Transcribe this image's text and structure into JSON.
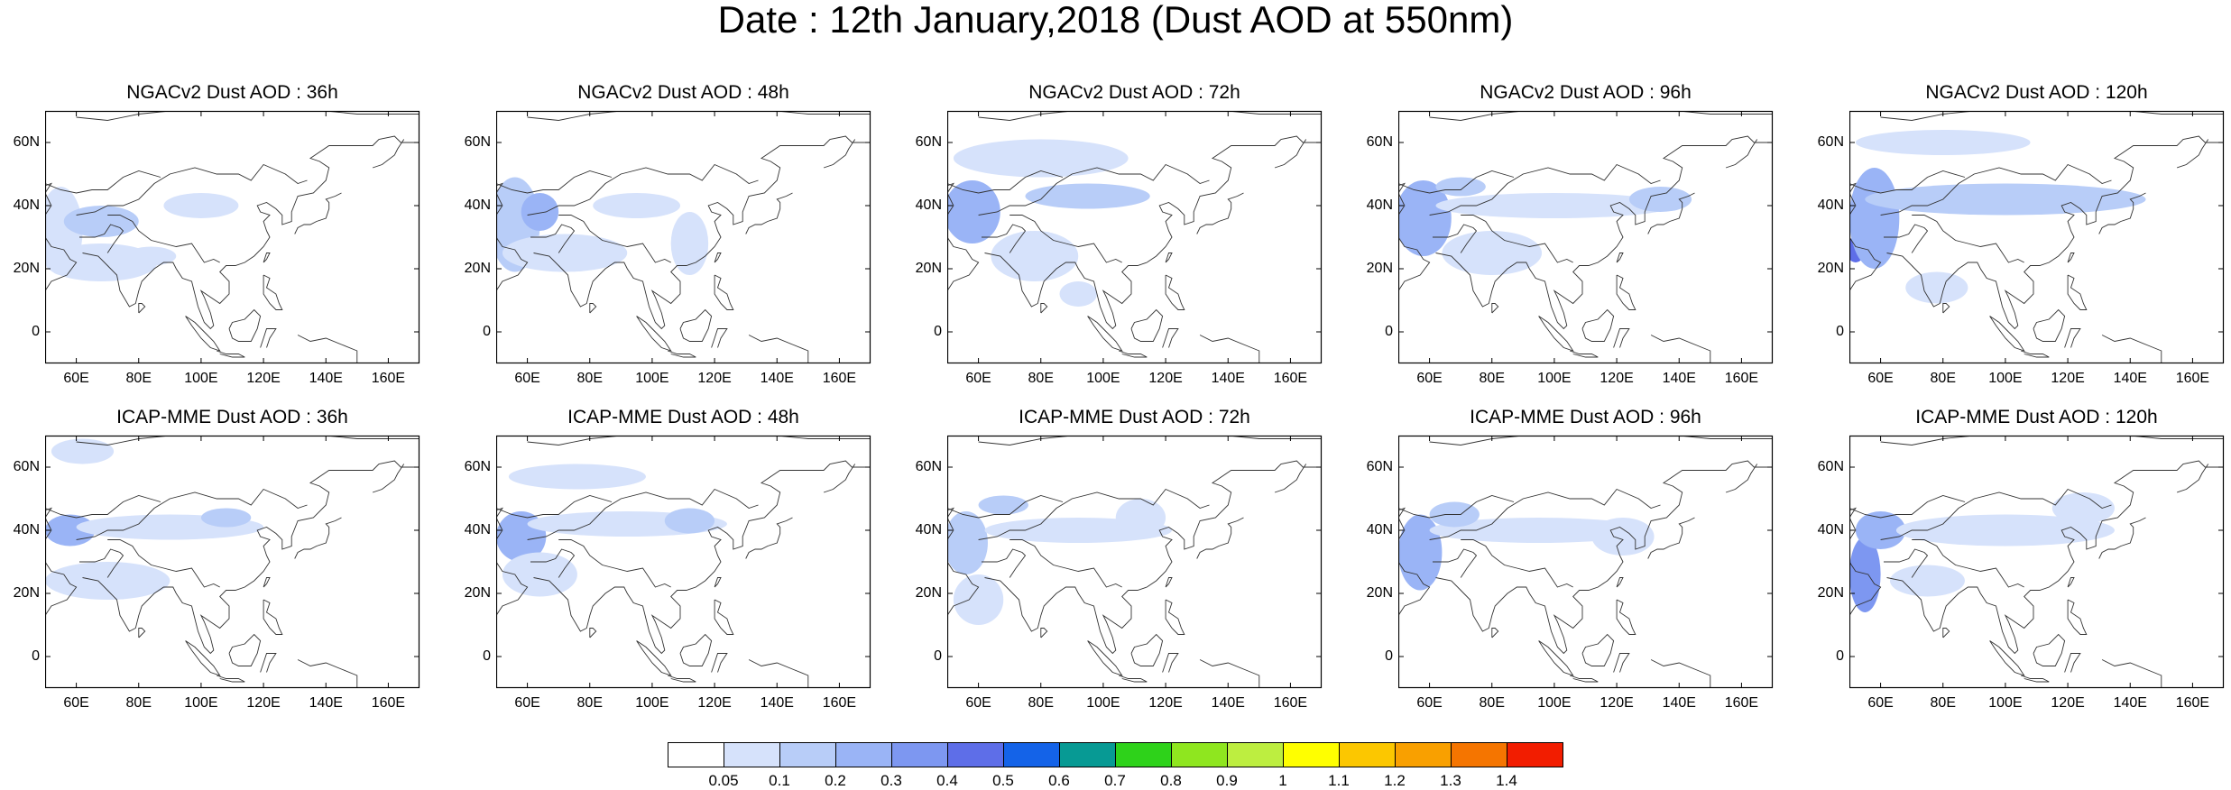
{
  "title": "Date : 12th January,2018 (Dust AOD at 550nm)",
  "chart_data": {
    "type": "heatmap",
    "title": "Date : 12th January,2018 (Dust AOD at 550nm)",
    "map_domain": {
      "lon": [
        50,
        170
      ],
      "lat": [
        -10,
        70
      ]
    },
    "x_ticks": [
      "60E",
      "80E",
      "100E",
      "120E",
      "140E",
      "160E"
    ],
    "x_tick_values": [
      60,
      80,
      100,
      120,
      140,
      160
    ],
    "y_ticks": [
      "60N",
      "40N",
      "20N",
      "0"
    ],
    "y_tick_values": [
      60,
      40,
      20,
      0
    ],
    "colorbar": {
      "levels": [
        "0.05",
        "0.1",
        "0.2",
        "0.3",
        "0.4",
        "0.5",
        "0.6",
        "0.7",
        "0.8",
        "0.9",
        "1",
        "1.1",
        "1.2",
        "1.3",
        "1.4"
      ],
      "colors": [
        "#ffffff",
        "#d6e2fb",
        "#b8cdf8",
        "#9ab4f6",
        "#7d97f1",
        "#5e6ee8",
        "#1463e8",
        "#079a94",
        "#2ed21a",
        "#8fe61f",
        "#bdee40",
        "#ffff00",
        "#fcc700",
        "#f9a000",
        "#f57500",
        "#f21d00"
      ]
    },
    "panels": [
      {
        "model": "NGACv2",
        "lead": "36h",
        "title": "NGACv2 Dust AOD : 36h",
        "plumes": [
          {
            "lon": 55,
            "lat": 32,
            "rx": 7,
            "ry": 14,
            "level": 1
          },
          {
            "lon": 68,
            "lat": 35,
            "rx": 12,
            "ry": 5,
            "level": 2
          },
          {
            "lon": 68,
            "lat": 22,
            "rx": 18,
            "ry": 6,
            "level": 1
          },
          {
            "lon": 100,
            "lat": 40,
            "rx": 12,
            "ry": 4,
            "level": 1
          },
          {
            "lon": 84,
            "lat": 24,
            "rx": 8,
            "ry": 3,
            "level": 1
          }
        ]
      },
      {
        "model": "NGACv2",
        "lead": "48h",
        "title": "NGACv2 Dust AOD : 48h",
        "plumes": [
          {
            "lon": 56,
            "lat": 34,
            "rx": 8,
            "ry": 15,
            "level": 2
          },
          {
            "lon": 72,
            "lat": 25,
            "rx": 20,
            "ry": 6,
            "level": 1
          },
          {
            "lon": 95,
            "lat": 40,
            "rx": 14,
            "ry": 4,
            "level": 1
          },
          {
            "lon": 112,
            "lat": 28,
            "rx": 6,
            "ry": 10,
            "level": 1
          },
          {
            "lon": 64,
            "lat": 38,
            "rx": 6,
            "ry": 6,
            "level": 3
          }
        ]
      },
      {
        "model": "NGACv2",
        "lead": "72h",
        "title": "NGACv2 Dust AOD : 72h",
        "plumes": [
          {
            "lon": 58,
            "lat": 38,
            "rx": 9,
            "ry": 10,
            "level": 3
          },
          {
            "lon": 80,
            "lat": 55,
            "rx": 28,
            "ry": 6,
            "level": 1
          },
          {
            "lon": 95,
            "lat": 43,
            "rx": 20,
            "ry": 4,
            "level": 2
          },
          {
            "lon": 78,
            "lat": 24,
            "rx": 14,
            "ry": 8,
            "level": 1
          },
          {
            "lon": 92,
            "lat": 12,
            "rx": 6,
            "ry": 4,
            "level": 1
          }
        ]
      },
      {
        "model": "NGACv2",
        "lead": "96h",
        "title": "NGACv2 Dust AOD : 96h",
        "plumes": [
          {
            "lon": 58,
            "lat": 36,
            "rx": 9,
            "ry": 12,
            "level": 3
          },
          {
            "lon": 100,
            "lat": 40,
            "rx": 38,
            "ry": 4,
            "level": 1
          },
          {
            "lon": 80,
            "lat": 25,
            "rx": 16,
            "ry": 7,
            "level": 1
          },
          {
            "lon": 134,
            "lat": 42,
            "rx": 10,
            "ry": 4,
            "level": 2
          },
          {
            "lon": 70,
            "lat": 46,
            "rx": 8,
            "ry": 3,
            "level": 2
          }
        ]
      },
      {
        "model": "NGACv2",
        "lead": "120h",
        "title": "NGACv2 Dust AOD : 120h",
        "plumes": [
          {
            "lon": 52,
            "lat": 26,
            "rx": 3,
            "ry": 4,
            "level": 5
          },
          {
            "lon": 58,
            "lat": 36,
            "rx": 8,
            "ry": 16,
            "level": 3
          },
          {
            "lon": 100,
            "lat": 42,
            "rx": 45,
            "ry": 5,
            "level": 2
          },
          {
            "lon": 80,
            "lat": 60,
            "rx": 28,
            "ry": 4,
            "level": 1
          },
          {
            "lon": 78,
            "lat": 14,
            "rx": 10,
            "ry": 5,
            "level": 1
          }
        ]
      },
      {
        "model": "ICAP-MME",
        "lead": "36h",
        "title": "ICAP-MME Dust AOD : 36h",
        "plumes": [
          {
            "lon": 58,
            "lat": 40,
            "rx": 8,
            "ry": 5,
            "level": 3
          },
          {
            "lon": 90,
            "lat": 41,
            "rx": 30,
            "ry": 4,
            "level": 1
          },
          {
            "lon": 108,
            "lat": 44,
            "rx": 8,
            "ry": 3,
            "level": 2
          },
          {
            "lon": 62,
            "lat": 65,
            "rx": 10,
            "ry": 4,
            "level": 1
          },
          {
            "lon": 70,
            "lat": 24,
            "rx": 20,
            "ry": 6,
            "level": 1
          }
        ]
      },
      {
        "model": "ICAP-MME",
        "lead": "48h",
        "title": "ICAP-MME Dust AOD : 48h",
        "plumes": [
          {
            "lon": 58,
            "lat": 38,
            "rx": 8,
            "ry": 8,
            "level": 3
          },
          {
            "lon": 92,
            "lat": 42,
            "rx": 32,
            "ry": 4,
            "level": 1
          },
          {
            "lon": 112,
            "lat": 43,
            "rx": 8,
            "ry": 4,
            "level": 2
          },
          {
            "lon": 76,
            "lat": 57,
            "rx": 22,
            "ry": 4,
            "level": 1
          },
          {
            "lon": 64,
            "lat": 26,
            "rx": 12,
            "ry": 7,
            "level": 1
          }
        ]
      },
      {
        "model": "ICAP-MME",
        "lead": "72h",
        "title": "ICAP-MME Dust AOD : 72h",
        "plumes": [
          {
            "lon": 56,
            "lat": 36,
            "rx": 7,
            "ry": 10,
            "level": 2
          },
          {
            "lon": 92,
            "lat": 40,
            "rx": 30,
            "ry": 4,
            "level": 1
          },
          {
            "lon": 112,
            "lat": 44,
            "rx": 8,
            "ry": 6,
            "level": 1
          },
          {
            "lon": 68,
            "lat": 48,
            "rx": 8,
            "ry": 3,
            "level": 2
          },
          {
            "lon": 60,
            "lat": 18,
            "rx": 8,
            "ry": 8,
            "level": 1
          }
        ]
      },
      {
        "model": "ICAP-MME",
        "lead": "96h",
        "title": "ICAP-MME Dust AOD : 96h",
        "plumes": [
          {
            "lon": 57,
            "lat": 33,
            "rx": 7,
            "ry": 12,
            "level": 3
          },
          {
            "lon": 95,
            "lat": 40,
            "rx": 35,
            "ry": 4,
            "level": 1
          },
          {
            "lon": 122,
            "lat": 38,
            "rx": 10,
            "ry": 6,
            "level": 1
          },
          {
            "lon": 68,
            "lat": 45,
            "rx": 8,
            "ry": 4,
            "level": 2
          }
        ]
      },
      {
        "model": "ICAP-MME",
        "lead": "120h",
        "title": "ICAP-MME Dust AOD : 120h",
        "plumes": [
          {
            "lon": 55,
            "lat": 26,
            "rx": 5,
            "ry": 12,
            "level": 4
          },
          {
            "lon": 60,
            "lat": 40,
            "rx": 8,
            "ry": 6,
            "level": 3
          },
          {
            "lon": 100,
            "lat": 40,
            "rx": 35,
            "ry": 5,
            "level": 1
          },
          {
            "lon": 125,
            "lat": 47,
            "rx": 10,
            "ry": 5,
            "level": 1
          },
          {
            "lon": 75,
            "lat": 24,
            "rx": 12,
            "ry": 5,
            "level": 1
          }
        ]
      }
    ]
  }
}
